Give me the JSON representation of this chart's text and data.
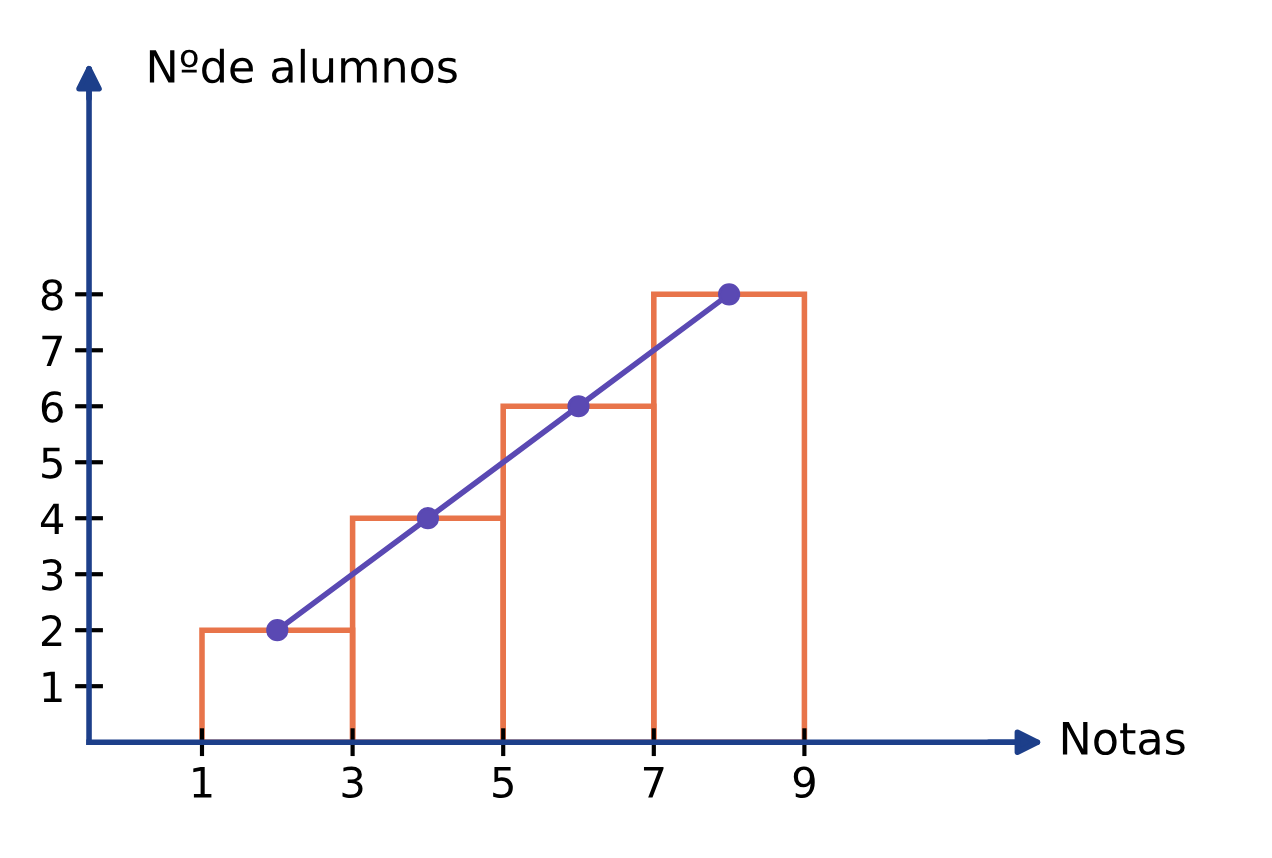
{
  "chart_data": {
    "type": "histogram",
    "xlabel": "Notas",
    "ylabel": "Nºde alumnos",
    "bins": [
      1,
      3,
      5,
      7,
      9
    ],
    "values": [
      2,
      4,
      6,
      8
    ],
    "color": "#e8744a",
    "series": [
      {
        "type": "line",
        "x": [
          2,
          4,
          6,
          8
        ],
        "values": [
          2,
          4,
          6,
          8
        ],
        "color": "#5a49b3",
        "marker": "circle"
      }
    ],
    "xlim": [
      -0.5,
      12
    ],
    "ylim": [
      0,
      12
    ],
    "xticks": [
      1,
      3,
      5,
      7,
      9
    ],
    "yticks": [
      1,
      2,
      3,
      4,
      5,
      6,
      7,
      8
    ],
    "grid": false,
    "legend": false
  }
}
